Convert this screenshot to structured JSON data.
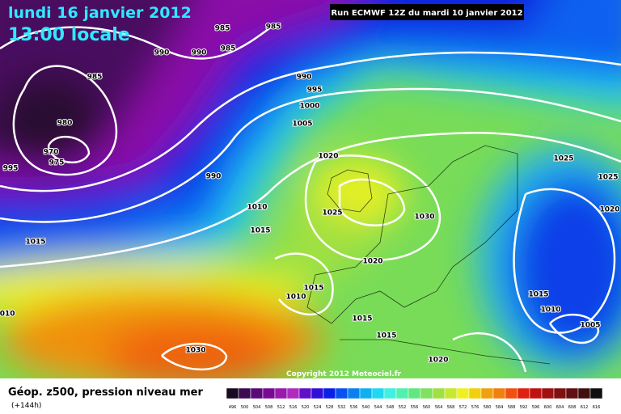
{
  "title": "lundi 16 janvier 2012",
  "subtitle": "13:00 locale",
  "run": "Run ECMWF 12Z du mardi 10 janvier 2012",
  "copyright": "Copyright 2012 Meteociel.fr",
  "caption": "Géop. z500, pression niveau mer",
  "lead_time": "(+144h)",
  "isobar_labels": [
    985,
    985,
    990,
    990,
    985,
    985,
    990,
    995,
    1000,
    980,
    970,
    975,
    995,
    1005,
    990,
    1020,
    1025,
    1025,
    1010,
    1025,
    1030,
    1020,
    1015,
    1015,
    1020,
    1015,
    1010,
    1015,
    1010,
    1015,
    1015,
    1005,
    1010,
    1030,
    1020
  ],
  "legend": {
    "values": [
      496,
      500,
      504,
      508,
      512,
      516,
      520,
      524,
      528,
      532,
      536,
      540,
      544,
      548,
      552,
      556,
      560,
      564,
      568,
      572,
      576,
      580,
      584,
      588,
      592,
      596,
      600,
      604,
      608,
      612,
      616
    ],
    "colors": [
      "#1a0a20",
      "#3c0a50",
      "#5a0a78",
      "#7a0a96",
      "#9a1aae",
      "#b02ac0",
      "#6010c8",
      "#3010d8",
      "#0a20e8",
      "#0a50f0",
      "#0a80f0",
      "#10b0f0",
      "#20d8f0",
      "#40f0e0",
      "#50f0b0",
      "#60e880",
      "#80e060",
      "#a0e040",
      "#c8e830",
      "#f0f020",
      "#f0d010",
      "#f0a010",
      "#f08010",
      "#f05010",
      "#e02010",
      "#c01010",
      "#a01010",
      "#801010",
      "#601010",
      "#401010",
      "#101010"
    ]
  }
}
